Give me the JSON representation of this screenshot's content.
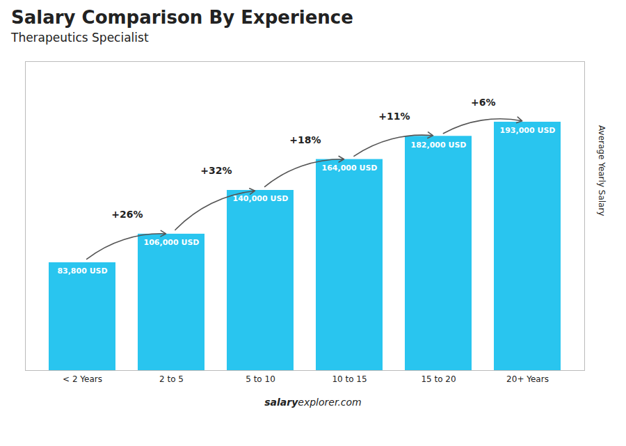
{
  "chart_data": {
    "type": "bar",
    "title": "Salary Comparison By Experience",
    "subtitle": "Therapeutics Specialist",
    "categories": [
      "< 2 Years",
      "2 to 5",
      "5 to 10",
      "10 to 15",
      "15 to 20",
      "20+ Years"
    ],
    "values": [
      83800,
      106000,
      140000,
      164000,
      182000,
      193000
    ],
    "value_labels": [
      "83,800 USD",
      "106,000 USD",
      "140,000 USD",
      "164,000 USD",
      "182,000 USD",
      "193,000 USD"
    ],
    "data_labels": true,
    "color": "#29c5ef",
    "ylabel": "Average Yearly Salary",
    "ylim": [
      0,
      240000
    ],
    "tick_labels": "x",
    "grid": false,
    "annotations": [
      "+26%",
      "+32%",
      "+18%",
      "+11%",
      "+6%"
    ],
    "footer": [
      "salary",
      "explorer.com"
    ]
  }
}
